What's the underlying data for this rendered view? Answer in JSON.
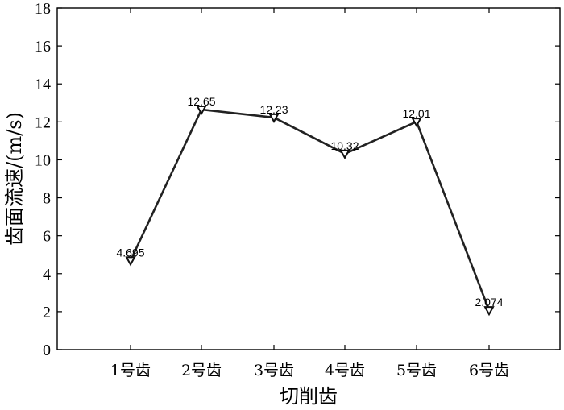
{
  "chart_data": {
    "type": "line",
    "title": "",
    "xlabel": "切削齿",
    "ylabel": "齿面流速/(m/s)",
    "categories": [
      "1号齿",
      "2号齿",
      "3号齿",
      "4号齿",
      "5号齿",
      "6号齿"
    ],
    "series": [
      {
        "values": [
          4.695,
          12.65,
          12.23,
          10.32,
          12.01,
          2.074
        ],
        "labels": [
          "4.695",
          "12.65",
          "12.23",
          "10.32",
          "12.01",
          "2.074"
        ],
        "marker": "down-triangle",
        "color": "#222222"
      }
    ],
    "ylim": [
      0,
      18
    ],
    "yticks": [
      "0",
      "2",
      "4",
      "6",
      "8",
      "10",
      "12",
      "14",
      "16",
      "18"
    ],
    "grid": false,
    "legend": "none"
  }
}
